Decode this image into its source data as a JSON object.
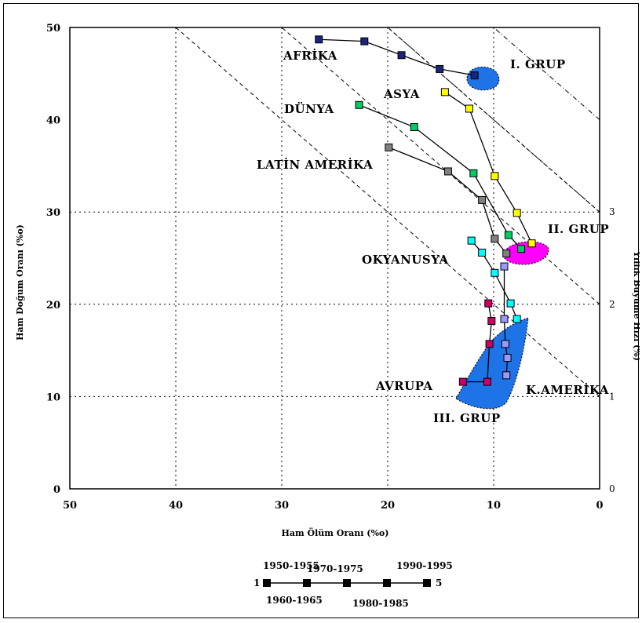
{
  "chart_data": {
    "type": "scatter",
    "x_reversed": true,
    "xlim": [
      50,
      0
    ],
    "ylim": [
      0,
      50
    ],
    "xlabel": "Ham Ölüm Oranı (%o)",
    "ylabel": "Ham Doğum Oranı (%o)",
    "right_label": "Yıllık Büyüme Hızı (%)",
    "x_ticks": [
      "50",
      "40",
      "30",
      "20",
      "10",
      "0"
    ],
    "y_ticks": [
      "0",
      "10",
      "20",
      "30",
      "40",
      "50"
    ],
    "right_ticks": [
      "0",
      "1",
      "2",
      "3"
    ],
    "grid": "dotted",
    "growth_lines_percent": [
      1,
      2,
      3
    ],
    "series": [
      {
        "name": "AFRİKA",
        "color": "#1a237e",
        "points": [
          [
            26.5,
            48.7
          ],
          [
            22.2,
            48.5
          ],
          [
            18.7,
            47.0
          ],
          [
            15.1,
            45.5
          ],
          [
            11.8,
            44.8
          ]
        ]
      },
      {
        "name": "ASYA",
        "color": "#ffff00",
        "points": [
          [
            14.6,
            43.0
          ],
          [
            12.3,
            41.2
          ],
          [
            9.9,
            33.9
          ],
          [
            7.8,
            29.9
          ],
          [
            6.4,
            26.6
          ]
        ]
      },
      {
        "name": "DÜNYA",
        "color": "#00cc66",
        "points": [
          [
            22.7,
            41.6
          ],
          [
            17.5,
            39.2
          ],
          [
            11.9,
            34.2
          ],
          [
            8.6,
            27.5
          ],
          [
            7.4,
            26.0
          ]
        ]
      },
      {
        "name": "LATİN AMERİKA",
        "color": "#808080",
        "points": [
          [
            19.9,
            37.0
          ],
          [
            14.3,
            34.4
          ],
          [
            11.1,
            31.3
          ],
          [
            9.9,
            27.1
          ],
          [
            8.8,
            25.5
          ]
        ]
      },
      {
        "name": "OKYANUSYA",
        "color": "#00ffff",
        "points": [
          [
            12.1,
            26.9
          ],
          [
            11.1,
            25.6
          ],
          [
            9.9,
            23.4
          ],
          [
            8.4,
            20.1
          ],
          [
            7.8,
            18.4
          ]
        ]
      },
      {
        "name": "K.AMERİKA",
        "color": "#9999ff",
        "points": [
          [
            9.0,
            24.1
          ],
          [
            9.0,
            18.4
          ],
          [
            8.9,
            15.7
          ],
          [
            8.7,
            14.2
          ],
          [
            8.8,
            12.3
          ]
        ]
      },
      {
        "name": "AVRUPA",
        "color": "#cc0066",
        "points": [
          [
            10.5,
            20.1
          ],
          [
            10.2,
            18.2
          ],
          [
            10.4,
            15.7
          ],
          [
            10.6,
            11.6
          ],
          [
            12.9,
            11.6
          ]
        ]
      }
    ],
    "region_labels": [
      "AFRİKA",
      "ASYA",
      "DÜNYA",
      "LATİN AMERİKA",
      "OKYANUSYA",
      "AVRUPA",
      "K.AMERİKA"
    ],
    "groups": [
      {
        "label": "I. GRUP",
        "color": "#1e73e6"
      },
      {
        "label": "II. GRUP",
        "color": "#ff00ff"
      },
      {
        "label": "III. GRUP",
        "color": "#1e73e6"
      }
    ],
    "legend": {
      "periods_top": [
        "1950-1955",
        "1970-1975",
        "1990-1995"
      ],
      "periods_bottom": [
        "1960-1965",
        "1980-1985"
      ],
      "start_num": "1",
      "end_num": "5"
    }
  }
}
